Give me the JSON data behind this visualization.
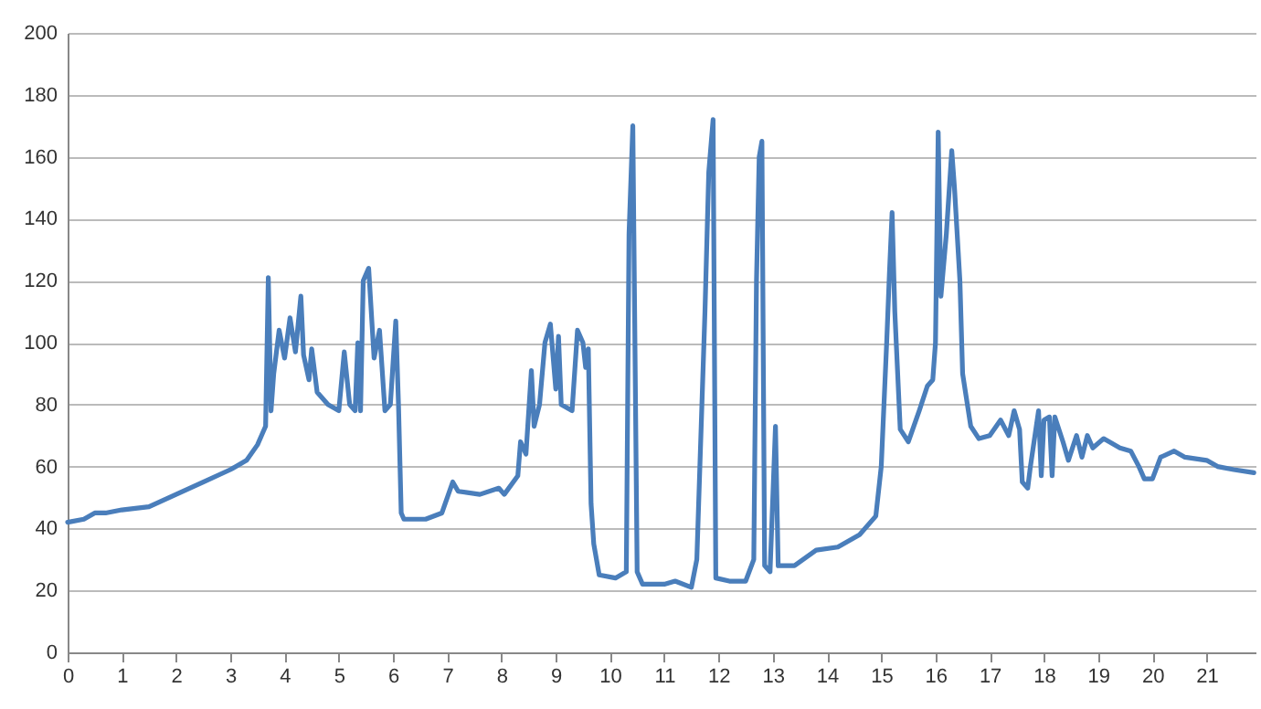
{
  "chart_data": {
    "type": "line",
    "x": [
      0,
      0.3,
      0.5,
      0.7,
      1,
      1.5,
      2,
      2.5,
      3,
      3.3,
      3.5,
      3.6,
      3.65,
      3.7,
      3.75,
      3.8,
      3.9,
      4.0,
      4.1,
      4.2,
      4.3,
      4.35,
      4.45,
      4.5,
      4.6,
      4.8,
      5.0,
      5.1,
      5.2,
      5.3,
      5.35,
      5.4,
      5.45,
      5.55,
      5.65,
      5.75,
      5.85,
      5.95,
      6.05,
      6.1,
      6.15,
      6.2,
      6.6,
      6.9,
      7.1,
      7.2,
      7.6,
      7.95,
      8.05,
      8.3,
      8.35,
      8.45,
      8.55,
      8.6,
      8.7,
      8.8,
      8.9,
      9.0,
      9.05,
      9.1,
      9.3,
      9.4,
      9.5,
      9.55,
      9.6,
      9.65,
      9.7,
      9.8,
      10.1,
      10.3,
      10.35,
      10.42,
      10.5,
      10.6,
      11.0,
      11.2,
      11.5,
      11.6,
      11.75,
      11.82,
      11.9,
      11.95,
      12.2,
      12.5,
      12.65,
      12.7,
      12.75,
      12.8,
      12.85,
      12.95,
      13.05,
      13.1,
      13.4,
      13.8,
      14.2,
      14.6,
      14.9,
      15.0,
      15.1,
      15.15,
      15.2,
      15.25,
      15.35,
      15.5,
      15.7,
      15.85,
      15.95,
      16.0,
      16.05,
      16.1,
      16.2,
      16.3,
      16.35,
      16.45,
      16.5,
      16.65,
      16.8,
      17.0,
      17.2,
      17.35,
      17.45,
      17.55,
      17.6,
      17.7,
      17.75,
      17.9,
      17.95,
      18.0,
      18.1,
      18.15,
      18.2,
      18.35,
      18.45,
      18.6,
      18.7,
      18.8,
      18.9,
      19.1,
      19.4,
      19.6,
      19.75,
      19.85,
      20.0,
      20.15,
      20.4,
      20.6,
      21.0,
      21.2,
      21.5,
      21.87
    ],
    "series": [
      {
        "color": "#4a7ebb",
        "values": [
          42,
          43,
          45,
          45,
          46,
          47,
          51,
          55,
          59,
          62,
          67,
          71,
          73,
          121,
          78,
          90,
          104,
          95,
          108,
          97,
          115,
          96,
          88,
          98,
          84,
          80,
          78,
          97,
          80,
          78,
          100,
          78,
          120,
          124,
          95,
          104,
          78,
          80,
          107,
          80,
          45,
          43,
          43,
          45,
          55,
          52,
          51,
          53,
          51,
          57,
          68,
          64,
          91,
          73,
          80,
          100,
          106,
          85,
          102,
          80,
          78,
          104,
          100,
          92,
          98,
          48,
          35,
          25,
          24,
          26,
          135,
          170,
          26,
          22,
          22,
          23,
          21,
          30,
          110,
          155,
          172,
          24,
          23,
          23,
          30,
          120,
          160,
          165,
          28,
          26,
          73,
          28,
          28,
          33,
          34,
          38,
          44,
          60,
          100,
          122,
          142,
          110,
          72,
          68,
          78,
          86,
          88,
          100,
          168,
          115,
          135,
          162,
          150,
          120,
          90,
          73,
          69,
          70,
          75,
          70,
          78,
          72,
          55,
          53,
          60,
          78,
          57,
          75,
          76,
          57,
          76,
          68,
          62,
          70,
          63,
          70,
          66,
          69,
          66,
          65,
          60,
          56,
          56,
          63,
          65,
          63,
          62,
          60,
          59,
          58
        ]
      }
    ],
    "xlim": [
      0,
      21.9
    ],
    "xticks": [
      0,
      1,
      2,
      3,
      4,
      5,
      6,
      7,
      8,
      9,
      10,
      11,
      12,
      13,
      14,
      15,
      16,
      17,
      18,
      19,
      20,
      21
    ],
    "ylim": [
      0,
      200
    ],
    "yticks": [
      0,
      20,
      40,
      60,
      80,
      100,
      120,
      140,
      160,
      180,
      200
    ],
    "grid": "y",
    "line_style": "solid"
  }
}
